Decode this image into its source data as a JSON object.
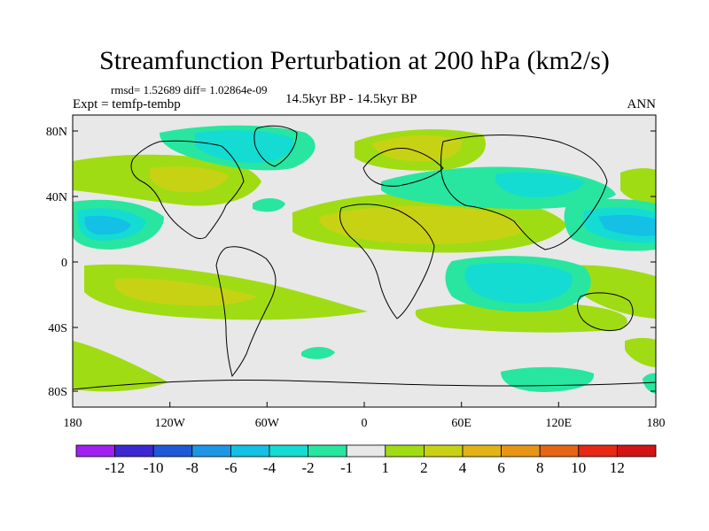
{
  "title": "Streamfunction Perturbation at 200 hPa (km2/s)",
  "stats": "rmsd= 1.52689  diff= 1.02864e-09",
  "experiment": "Expt = temfp-tembp",
  "period": "14.5kyr BP - 14.5kyr BP",
  "season": "ANN",
  "lat_ticks": [
    "80N",
    "40N",
    "0",
    "40S",
    "80S"
  ],
  "lon_ticks": [
    "180",
    "120W",
    "60W",
    "0",
    "60E",
    "120E",
    "180"
  ],
  "colorbar": {
    "labels": [
      "-12",
      "-10",
      "-8",
      "-6",
      "-4",
      "-2",
      "-1",
      "1",
      "2",
      "4",
      "6",
      "8",
      "10",
      "12"
    ],
    "colors": [
      "#a020f0",
      "#3c28d0",
      "#1e5ad8",
      "#1e96e6",
      "#14c0e6",
      "#14dcd2",
      "#28e6a0",
      "#e8e8e8",
      "#a0dc14",
      "#c8d214",
      "#e0b414",
      "#e69614",
      "#e66414",
      "#e62814",
      "#d21414"
    ]
  },
  "colors": {
    "background": "#e8e8e8",
    "ocean_outline": "#000000"
  }
}
